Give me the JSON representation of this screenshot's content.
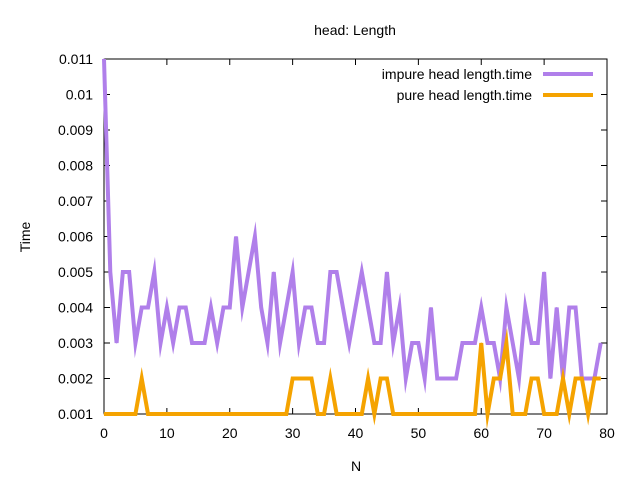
{
  "chart_data": {
    "type": "line",
    "title": "head: Length",
    "xlabel": "N",
    "ylabel": "Time",
    "xlim": [
      0,
      80
    ],
    "ylim": [
      0.001,
      0.011
    ],
    "xticks": [
      "0",
      "10",
      "20",
      "30",
      "40",
      "50",
      "60",
      "70",
      "80"
    ],
    "yticks": [
      "0.001",
      "0.002",
      "0.003",
      "0.004",
      "0.005",
      "0.006",
      "0.007",
      "0.008",
      "0.009",
      "0.01",
      "0.011"
    ],
    "legend_position": "top-right",
    "grid": false,
    "x": [
      0,
      1,
      2,
      3,
      4,
      5,
      6,
      7,
      8,
      9,
      10,
      11,
      12,
      13,
      14,
      15,
      16,
      17,
      18,
      19,
      20,
      21,
      22,
      23,
      24,
      25,
      26,
      27,
      28,
      29,
      30,
      31,
      32,
      33,
      34,
      35,
      36,
      37,
      38,
      39,
      40,
      41,
      42,
      43,
      44,
      45,
      46,
      47,
      48,
      49,
      50,
      51,
      52,
      53,
      54,
      55,
      56,
      57,
      58,
      59,
      60,
      61,
      62,
      63,
      64,
      65,
      66,
      67,
      68,
      69,
      70,
      71,
      72,
      73,
      74,
      75,
      76,
      77,
      78,
      79
    ],
    "series": [
      {
        "name": "impure head length.time",
        "color": "#b07fea",
        "values": [
          0.011,
          0.005,
          0.003,
          0.005,
          0.005,
          0.003,
          0.004,
          0.004,
          0.005,
          0.003,
          0.004,
          0.003,
          0.004,
          0.004,
          0.003,
          0.003,
          0.003,
          0.004,
          0.003,
          0.004,
          0.004,
          0.006,
          0.004,
          0.005,
          0.006,
          0.004,
          0.003,
          0.005,
          0.003,
          0.004,
          0.005,
          0.003,
          0.004,
          0.004,
          0.003,
          0.003,
          0.005,
          0.005,
          0.004,
          0.003,
          0.004,
          0.005,
          0.004,
          0.003,
          0.003,
          0.005,
          0.003,
          0.004,
          0.002,
          0.003,
          0.003,
          0.002,
          0.004,
          0.002,
          0.002,
          0.002,
          0.002,
          0.003,
          0.003,
          0.003,
          0.004,
          0.003,
          0.003,
          0.002,
          0.004,
          0.003,
          0.002,
          0.004,
          0.003,
          0.003,
          0.005,
          0.002,
          0.004,
          0.002,
          0.004,
          0.004,
          0.002,
          0.002,
          0.002,
          0.003
        ]
      },
      {
        "name": "pure head length.time",
        "color": "#f5a300",
        "values": [
          0.001,
          0.001,
          0.001,
          0.001,
          0.001,
          0.001,
          0.002,
          0.001,
          0.001,
          0.001,
          0.001,
          0.001,
          0.001,
          0.001,
          0.001,
          0.001,
          0.001,
          0.001,
          0.001,
          0.001,
          0.001,
          0.001,
          0.001,
          0.001,
          0.001,
          0.001,
          0.001,
          0.001,
          0.001,
          0.001,
          0.002,
          0.002,
          0.002,
          0.002,
          0.001,
          0.001,
          0.002,
          0.001,
          0.001,
          0.001,
          0.001,
          0.001,
          0.002,
          0.001,
          0.002,
          0.002,
          0.001,
          0.001,
          0.001,
          0.001,
          0.001,
          0.001,
          0.001,
          0.001,
          0.001,
          0.001,
          0.001,
          0.001,
          0.001,
          0.001,
          0.003,
          0.001,
          0.002,
          0.002,
          0.003,
          0.001,
          0.001,
          0.001,
          0.002,
          0.002,
          0.001,
          0.001,
          0.001,
          0.002,
          0.001,
          0.002,
          0.002,
          0.001,
          0.002,
          0.002
        ]
      }
    ]
  }
}
